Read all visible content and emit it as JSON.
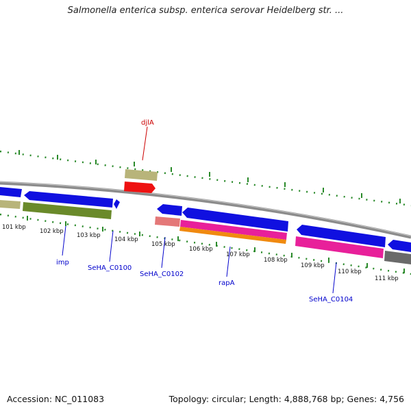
{
  "title": "Salmonella enterica subsp. enterica serovar Heidelberg str. ...",
  "footer": {
    "accession": "Accession: NC_011083",
    "summary": "Topology: circular; Length: 4,888,768 bp; Genes: 4,756"
  },
  "colors": {
    "backbone": "#8c8c8c",
    "tick": "#2a8a2a",
    "cds": "#1010e0",
    "gene_khaki": "#b8b47a",
    "gene_olive": "#6a8a2a",
    "gene_red": "#ee1111",
    "gene_salmon": "#e47878",
    "gene_magenta": "#e8209a",
    "gene_orange": "#f08a10",
    "gene_gray": "#6a6a6a",
    "label_blue": "#0000cc",
    "label_red": "#cc0000"
  },
  "scale_labels": [
    "101 kbp",
    "102 kbp",
    "103 kbp",
    "104 kbp",
    "105 kbp",
    "106 kbp",
    "107 kbp",
    "108 kbp",
    "109 kbp",
    "110 kbp",
    "111 kbp"
  ],
  "gene_labels": [
    {
      "text": "djlA",
      "color": "red"
    },
    {
      "text": "imp",
      "color": "blue"
    },
    {
      "text": "SeHA_C0100",
      "color": "blue"
    },
    {
      "text": "SeHA_C0102",
      "color": "blue"
    },
    {
      "text": "rapA",
      "color": "blue"
    },
    {
      "text": "SeHA_C0104",
      "color": "blue"
    }
  ]
}
